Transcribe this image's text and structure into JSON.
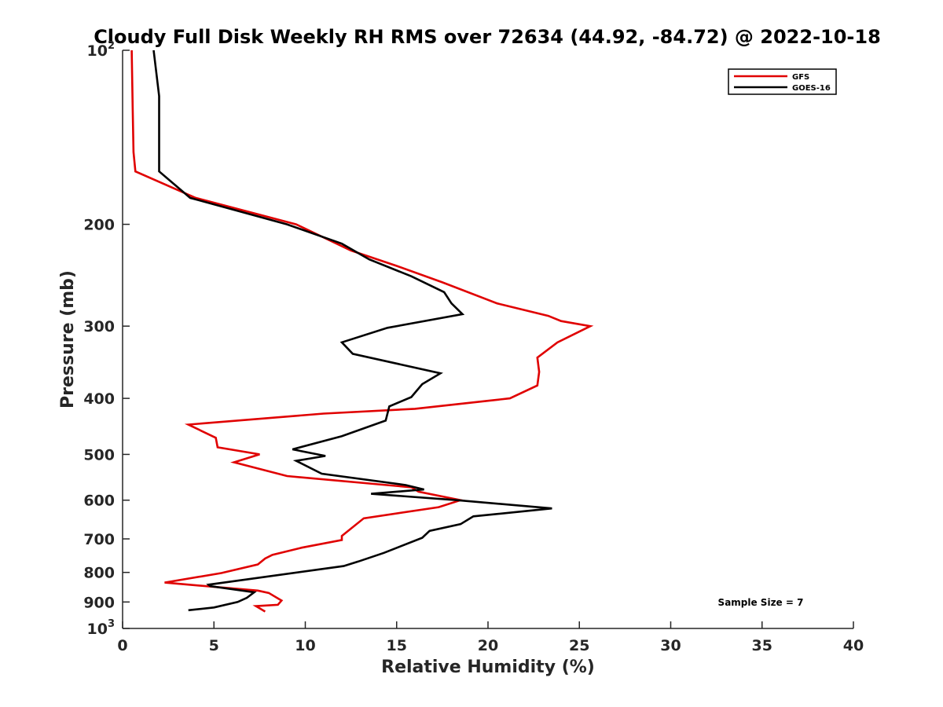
{
  "chart_data": {
    "type": "line",
    "title": "Cloudy Full Disk Weekly RH RMS over 72634 (44.92, -84.72) @ 2022-10-18",
    "xlabel": "Relative Humidity (%)",
    "ylabel": "Pressure (mb)",
    "xlim": [
      0,
      40
    ],
    "ylim": [
      100,
      1000
    ],
    "yscale": "log",
    "y_reversed": true,
    "xticks": [
      "0",
      "5",
      "10",
      "15",
      "20",
      "25",
      "30",
      "35",
      "40"
    ],
    "yticks": [
      {
        "value": 100,
        "base": "10",
        "exp": "2"
      },
      {
        "value": 200,
        "label": "200"
      },
      {
        "value": 300,
        "label": "300"
      },
      {
        "value": 400,
        "label": "400"
      },
      {
        "value": 500,
        "label": "500"
      },
      {
        "value": 600,
        "label": "600"
      },
      {
        "value": 700,
        "label": "700"
      },
      {
        "value": 800,
        "label": "800"
      },
      {
        "value": 900,
        "label": "900"
      },
      {
        "value": 1000,
        "base": "10",
        "exp": "3"
      }
    ],
    "legend_position": "top-right",
    "grid": false,
    "annotation": "Sample Size = 7",
    "series": [
      {
        "name": "GFS",
        "color": "#e00000",
        "points": [
          [
            0.5,
            100
          ],
          [
            0.55,
            125
          ],
          [
            0.6,
            150
          ],
          [
            0.7,
            162
          ],
          [
            4.0,
            180
          ],
          [
            9.5,
            200
          ],
          [
            12.5,
            222
          ],
          [
            15.0,
            236
          ],
          [
            17.5,
            252
          ],
          [
            20.5,
            274
          ],
          [
            23.3,
            288
          ],
          [
            24.0,
            294
          ],
          [
            25.6,
            300
          ],
          [
            23.8,
            320
          ],
          [
            22.7,
            340
          ],
          [
            22.8,
            360
          ],
          [
            22.7,
            380
          ],
          [
            21.2,
            400
          ],
          [
            16.0,
            417
          ],
          [
            11.0,
            425
          ],
          [
            3.6,
            444
          ],
          [
            5.1,
            468
          ],
          [
            5.2,
            486
          ],
          [
            7.5,
            500
          ],
          [
            6.1,
            516
          ],
          [
            9.0,
            545
          ],
          [
            15.8,
            570
          ],
          [
            16.2,
            580
          ],
          [
            18.5,
            600
          ],
          [
            17.3,
            617
          ],
          [
            13.2,
            645
          ],
          [
            12.0,
            692
          ],
          [
            12.0,
            703
          ],
          [
            9.8,
            725
          ],
          [
            8.2,
            746
          ],
          [
            7.8,
            757
          ],
          [
            7.4,
            775
          ],
          [
            5.4,
            802
          ],
          [
            2.3,
            833
          ],
          [
            7.4,
            860
          ],
          [
            8.0,
            868
          ],
          [
            8.7,
            895
          ],
          [
            8.5,
            910
          ],
          [
            7.3,
            915
          ],
          [
            7.8,
            935
          ]
        ]
      },
      {
        "name": "GOES-16",
        "color": "#000000",
        "points": [
          [
            1.7,
            100
          ],
          [
            2.0,
            120
          ],
          [
            2.0,
            162
          ],
          [
            3.7,
            180
          ],
          [
            9.0,
            200
          ],
          [
            12.0,
            216
          ],
          [
            13.5,
            230
          ],
          [
            15.8,
            246
          ],
          [
            17.6,
            262
          ],
          [
            18.0,
            274
          ],
          [
            18.6,
            286
          ],
          [
            14.5,
            302
          ],
          [
            12.0,
            320
          ],
          [
            12.6,
            335
          ],
          [
            17.4,
            362
          ],
          [
            16.4,
            378
          ],
          [
            15.8,
            398
          ],
          [
            14.6,
            413
          ],
          [
            14.4,
            437
          ],
          [
            12.0,
            465
          ],
          [
            9.3,
            490
          ],
          [
            11.1,
            503
          ],
          [
            9.5,
            513
          ],
          [
            10.9,
            540
          ],
          [
            15.5,
            565
          ],
          [
            16.5,
            575
          ],
          [
            13.6,
            585
          ],
          [
            18.3,
            600
          ],
          [
            23.5,
            620
          ],
          [
            19.2,
            640
          ],
          [
            18.5,
            660
          ],
          [
            16.8,
            678
          ],
          [
            16.4,
            697
          ],
          [
            14.3,
            740
          ],
          [
            12.9,
            766
          ],
          [
            12.1,
            780
          ],
          [
            4.7,
            840
          ],
          [
            4.8,
            845
          ],
          [
            7.2,
            866
          ],
          [
            6.8,
            885
          ],
          [
            6.3,
            900
          ],
          [
            5.0,
            920
          ],
          [
            3.6,
            930
          ]
        ]
      }
    ]
  }
}
